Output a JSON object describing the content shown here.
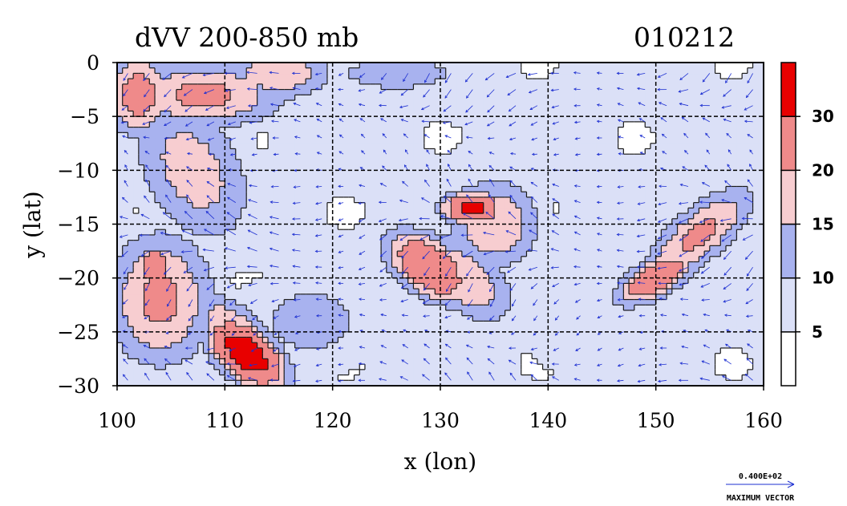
{
  "chart_data": {
    "type": "contour",
    "title": "dVV 200-850 mb",
    "date_label": "010212",
    "xlabel": "x (lon)",
    "ylabel": "y (lat)",
    "xlim": [
      100,
      160
    ],
    "ylim": [
      -30,
      0
    ],
    "x_ticks": [
      100,
      110,
      120,
      130,
      140,
      150,
      160
    ],
    "y_ticks": [
      0,
      -5,
      -10,
      -15,
      -20,
      -25,
      -30
    ],
    "x_tick_labels": [
      "100",
      "110",
      "120",
      "130",
      "140",
      "150",
      "160"
    ],
    "y_tick_labels": [
      "0",
      "−5",
      "−10",
      "−15",
      "−20",
      "−25",
      "−30"
    ],
    "grid": true,
    "colorbar": {
      "levels": [
        0,
        5,
        10,
        15,
        20,
        30,
        40
      ],
      "labels": [
        "5",
        "10",
        "15",
        "20",
        "30"
      ],
      "colors": [
        "#ffffff",
        "#dbe0f7",
        "#a8b2ef",
        "#f7cdd0",
        "#ef8a8a",
        "#e80000"
      ]
    },
    "vector_legend": {
      "value": "0.400E+02",
      "label": "MAXIMUM VECTOR"
    }
  }
}
